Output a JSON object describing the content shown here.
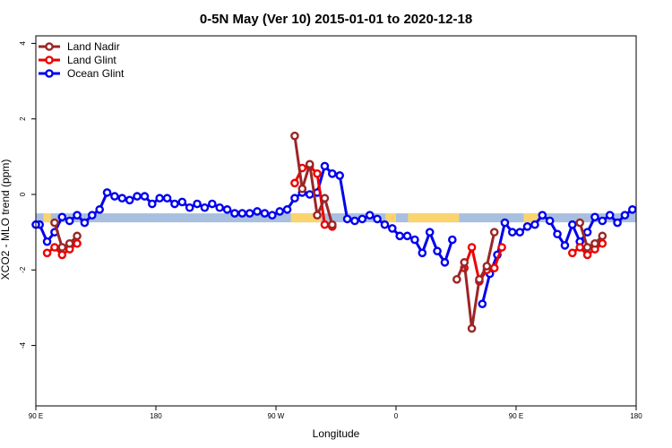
{
  "chart_data": {
    "type": "line",
    "title": "0-5N May (Ver 10)   2015-01-01 to 2020-12-18",
    "xlabel": "Longitude",
    "ylabel": "XCO2 - MLO trend (ppm)",
    "xlim": [
      0,
      400
    ],
    "ylim": [
      -5.6,
      4.2
    ],
    "x_ticks": [
      {
        "x": 0,
        "label": "90 E"
      },
      {
        "x": 80,
        "label": "180"
      },
      {
        "x": 160,
        "label": "90 W"
      },
      {
        "x": 240,
        "label": "0"
      },
      {
        "x": 320,
        "label": "90 E"
      },
      {
        "x": 400,
        "label": "180"
      }
    ],
    "y_ticks": [
      {
        "y": -4,
        "label": "-4"
      },
      {
        "y": -2,
        "label": "-2"
      },
      {
        "y": 0,
        "label": "0"
      },
      {
        "y": 2,
        "label": "2"
      },
      {
        "y": 4,
        "label": "4"
      }
    ],
    "grid": false,
    "legend": "top-left",
    "band": {
      "y": -0.62,
      "color": "#a9bfdf",
      "land_color": "#fbd46e",
      "land_ranges": [
        [
          5,
          10
        ],
        [
          170,
          190
        ],
        [
          233,
          240
        ],
        [
          248,
          282
        ],
        [
          325,
          335
        ]
      ]
    },
    "series": [
      {
        "name": "Ocean Glint",
        "color": "#0000ee",
        "points": [
          [
            2.5,
            -0.8
          ],
          [
            7.5,
            -1.25
          ],
          [
            12.5,
            -1.0
          ],
          [
            17.5,
            -0.6
          ],
          [
            22.5,
            -0.7
          ],
          [
            27.5,
            -0.55
          ],
          [
            32.5,
            -0.75
          ],
          [
            37.5,
            -0.55
          ],
          [
            42.5,
            -0.4
          ],
          [
            47.5,
            0.05
          ],
          [
            52.5,
            -0.05
          ],
          [
            57.5,
            -0.1
          ],
          [
            62.5,
            -0.15
          ],
          [
            67.5,
            -0.05
          ],
          [
            72.5,
            -0.05
          ],
          [
            77.5,
            -0.25
          ],
          [
            82.5,
            -0.1
          ],
          [
            87.5,
            -0.1
          ],
          [
            92.5,
            -0.25
          ],
          [
            97.5,
            -0.2
          ],
          [
            102.5,
            -0.35
          ],
          [
            107.5,
            -0.25
          ],
          [
            112.5,
            -0.35
          ],
          [
            117.5,
            -0.25
          ],
          [
            122.5,
            -0.35
          ],
          [
            127.5,
            -0.4
          ],
          [
            132.5,
            -0.5
          ],
          [
            137.5,
            -0.5
          ],
          [
            142.5,
            -0.5
          ],
          [
            147.5,
            -0.45
          ],
          [
            152.5,
            -0.5
          ],
          [
            157.5,
            -0.55
          ],
          [
            162.5,
            -0.45
          ],
          [
            167.5,
            -0.4
          ],
          [
            172.5,
            -0.1
          ],
          [
            177.5,
            0.05
          ],
          [
            182.5,
            0.0
          ],
          [
            187.5,
            0.05
          ],
          [
            192.5,
            0.75
          ],
          [
            197.5,
            0.55
          ],
          [
            202.5,
            0.5
          ],
          [
            207.5,
            -0.65
          ],
          [
            212.5,
            -0.7
          ],
          [
            217.5,
            -0.65
          ],
          [
            222.5,
            -0.55
          ],
          [
            227.5,
            -0.65
          ],
          [
            232.5,
            -0.8
          ],
          [
            237.5,
            -0.9
          ],
          [
            242.5,
            -1.1
          ],
          [
            247.5,
            -1.1
          ],
          [
            252.5,
            -1.2
          ],
          [
            257.5,
            -1.55
          ],
          [
            262.5,
            -1.0
          ],
          [
            267.5,
            -1.5
          ],
          [
            272.5,
            -1.8
          ],
          [
            277.5,
            -1.2
          ],
          null,
          [
            297.5,
            -2.9
          ],
          [
            302.5,
            -2.1
          ],
          [
            307.5,
            -1.6
          ],
          [
            312.5,
            -0.75
          ],
          [
            317.5,
            -1.0
          ],
          [
            322.5,
            -1.0
          ],
          [
            327.5,
            -0.85
          ],
          [
            332.5,
            -0.8
          ],
          [
            337.5,
            -0.55
          ],
          [
            342.5,
            -0.7
          ],
          [
            347.5,
            -1.05
          ],
          [
            352.5,
            -1.35
          ],
          [
            357.5,
            -0.8
          ],
          [
            362.5,
            -1.25
          ],
          [
            367.5,
            -1.0
          ],
          [
            372.5,
            -0.6
          ],
          [
            377.5,
            -0.7
          ],
          [
            382.5,
            -0.55
          ],
          [
            387.5,
            -0.75
          ],
          [
            392.5,
            -0.55
          ],
          [
            397.5,
            -0.4
          ],
          null,
          [
            0,
            -0.8
          ]
        ]
      },
      {
        "name": "Land Glint",
        "color": "#ee0000",
        "points": [
          [
            7.5,
            -1.55
          ],
          [
            12.5,
            -1.4
          ],
          [
            17.5,
            -1.6
          ],
          [
            22.5,
            -1.45
          ],
          [
            27.5,
            -1.3
          ],
          null,
          [
            172.5,
            0.3
          ],
          [
            177.5,
            0.7
          ],
          [
            182.5,
            0.75
          ],
          [
            187.5,
            0.55
          ],
          [
            192.5,
            -0.8
          ],
          [
            197.5,
            -0.85
          ],
          null,
          [
            285.5,
            -1.95
          ],
          [
            290.5,
            -1.4
          ],
          [
            295.5,
            -2.3
          ],
          [
            300.5,
            -2.0
          ],
          [
            305.5,
            -1.95
          ],
          [
            310.5,
            -1.4
          ],
          null,
          [
            357.5,
            -1.55
          ],
          [
            362.5,
            -1.4
          ],
          [
            367.5,
            -1.6
          ],
          [
            372.5,
            -1.45
          ],
          [
            377.5,
            -1.3
          ]
        ]
      },
      {
        "name": "Land Nadir",
        "color": "#9b2626",
        "points": [
          [
            12.5,
            -0.75
          ],
          [
            17.5,
            -1.4
          ],
          [
            22.5,
            -1.3
          ],
          [
            27.5,
            -1.1
          ],
          null,
          [
            172.5,
            1.55
          ],
          [
            177.5,
            0.15
          ],
          [
            182.5,
            0.8
          ],
          [
            187.5,
            -0.55
          ],
          [
            192.5,
            -0.1
          ],
          [
            197.5,
            -0.8
          ],
          null,
          [
            280.5,
            -2.25
          ],
          [
            285.5,
            -1.8
          ],
          [
            290.5,
            -3.55
          ],
          [
            295.5,
            -2.25
          ],
          [
            300.5,
            -1.9
          ],
          [
            305.5,
            -1.0
          ],
          null,
          [
            362.5,
            -0.75
          ],
          [
            367.5,
            -1.4
          ],
          [
            372.5,
            -1.3
          ],
          [
            377.5,
            -1.1
          ]
        ]
      }
    ]
  }
}
